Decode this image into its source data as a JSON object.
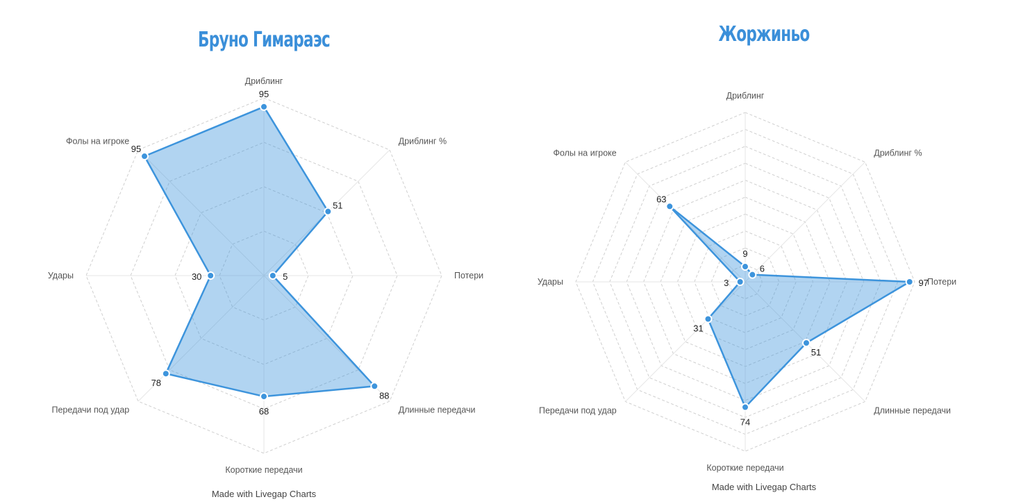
{
  "chart_data": [
    {
      "type": "radar",
      "title": "Бруно Гимараэс",
      "categories": [
        "Дриблинг",
        "Дриблинг %",
        "Потери",
        "Длинные передачи",
        "Короткие передачи",
        "Передачи под удар",
        "Удары",
        "Фолы на игроке"
      ],
      "values": [
        95,
        51,
        5,
        88,
        68,
        78,
        30,
        95
      ],
      "range": [
        0,
        100
      ],
      "grid": "dashed octagons, 4 levels",
      "color": "#3d94dc",
      "credit": "Made with Livegap Charts"
    },
    {
      "type": "radar",
      "title": "Жоржиньо",
      "categories": [
        "Дриблинг",
        "Дриблинг %",
        "Потери",
        "Длинные передачи",
        "Короткие передачи",
        "Передачи под удар",
        "Удары",
        "Фолы на игроке"
      ],
      "values": [
        9,
        6,
        97,
        51,
        74,
        31,
        3,
        63
      ],
      "range": [
        0,
        100
      ],
      "grid": "dashed octagons, 10 levels",
      "color": "#3d94dc",
      "credit": "Made with Livegap Charts"
    }
  ]
}
